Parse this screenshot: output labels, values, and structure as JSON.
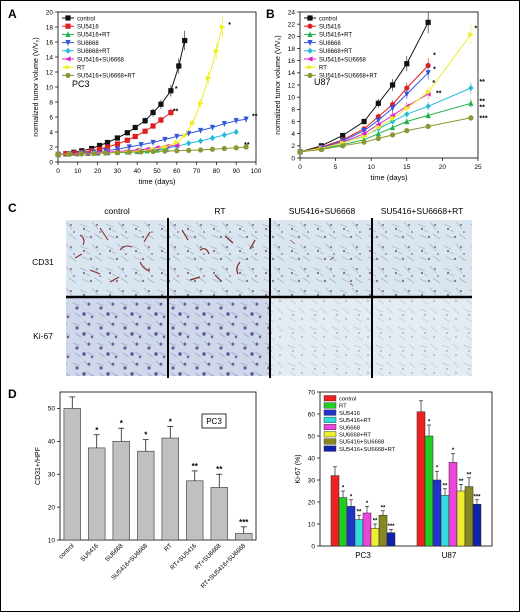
{
  "panel_labels": [
    "A",
    "B",
    "C",
    "D"
  ],
  "chart_data": [
    {
      "id": "A",
      "type": "line",
      "cell_label": "PC3",
      "xlabel": "time (days)",
      "ylabel": "normalized tumor volume (V/V₀)",
      "xlim": [
        0,
        100
      ],
      "ylim": [
        0,
        20
      ],
      "xticks": [
        0,
        10,
        20,
        30,
        40,
        50,
        60,
        70,
        80,
        90,
        100
      ],
      "yticks": [
        0,
        2,
        4,
        6,
        8,
        10,
        12,
        14,
        16,
        18,
        20
      ],
      "legend_position": "top-left",
      "series": [
        {
          "name": "control",
          "color": "#111111",
          "marker": "square",
          "points": [
            [
              0,
              1
            ],
            [
              4,
              1.1
            ],
            [
              8,
              1.3
            ],
            [
              12,
              1.5
            ],
            [
              17,
              1.8
            ],
            [
              21,
              2.2
            ],
            [
              25,
              2.6
            ],
            [
              30,
              3.2
            ],
            [
              35,
              3.9
            ],
            [
              39,
              4.6
            ],
            [
              44,
              5.5
            ],
            [
              48,
              6.6
            ],
            [
              52,
              7.7
            ],
            [
              57,
              9.5
            ],
            [
              61,
              12.8
            ],
            [
              64,
              16.2
            ]
          ]
        },
        {
          "name": "SU5416",
          "color": "#e02020",
          "marker": "square",
          "points": [
            [
              0,
              1
            ],
            [
              4,
              1.1
            ],
            [
              8,
              1.2
            ],
            [
              12,
              1.3
            ],
            [
              17,
              1.5
            ],
            [
              21,
              1.7
            ],
            [
              25,
              2
            ],
            [
              30,
              2.4
            ],
            [
              35,
              2.9
            ],
            [
              39,
              3.4
            ],
            [
              44,
              4.1
            ],
            [
              48,
              4.8
            ],
            [
              52,
              5.6
            ],
            [
              57,
              6.6
            ]
          ]
        },
        {
          "name": "SU5416+RT",
          "color": "#22b14c",
          "marker": "triangle",
          "points": [
            [
              0,
              1
            ],
            [
              5,
              1.05
            ],
            [
              10,
              1.1
            ],
            [
              15,
              1.15
            ],
            [
              20,
              1.2
            ],
            [
              25,
              1.25
            ],
            [
              30,
              1.3
            ],
            [
              35,
              1.35
            ],
            [
              40,
              1.4
            ],
            [
              45,
              1.5
            ],
            [
              50,
              1.6
            ],
            [
              55,
              1.7
            ]
          ]
        },
        {
          "name": "SU6668",
          "color": "#3355dd",
          "marker": "triangle-down",
          "points": [
            [
              0,
              1
            ],
            [
              6,
              1.1
            ],
            [
              12,
              1.2
            ],
            [
              18,
              1.3
            ],
            [
              24,
              1.5
            ],
            [
              30,
              1.7
            ],
            [
              36,
              2
            ],
            [
              42,
              2.3
            ],
            [
              48,
              2.6
            ],
            [
              54,
              3
            ],
            [
              60,
              3.4
            ],
            [
              66,
              3.8
            ],
            [
              72,
              4.2
            ],
            [
              78,
              4.6
            ],
            [
              84,
              5.1
            ],
            [
              90,
              5.5
            ],
            [
              95,
              5.7
            ]
          ]
        },
        {
          "name": "SU6668+RT",
          "color": "#22bbdd",
          "marker": "diamond",
          "points": [
            [
              0,
              1
            ],
            [
              6,
              1.05
            ],
            [
              12,
              1.1
            ],
            [
              18,
              1.15
            ],
            [
              24,
              1.2
            ],
            [
              30,
              1.3
            ],
            [
              36,
              1.4
            ],
            [
              42,
              1.5
            ],
            [
              48,
              1.6
            ],
            [
              54,
              1.8
            ],
            [
              60,
              2.1
            ],
            [
              66,
              2.5
            ],
            [
              72,
              2.8
            ],
            [
              78,
              3.2
            ],
            [
              84,
              3.6
            ],
            [
              90,
              4
            ]
          ]
        },
        {
          "name": "SU5416+SU6668",
          "color": "#dd22cc",
          "marker": "triangle-left",
          "points": [
            [
              0,
              1
            ],
            [
              5,
              1.05
            ],
            [
              10,
              1.1
            ],
            [
              15,
              1.15
            ],
            [
              20,
              1.2
            ],
            [
              25,
              1.3
            ],
            [
              30,
              1.4
            ],
            [
              35,
              1.5
            ],
            [
              40,
              1.6
            ],
            [
              45,
              1.7
            ],
            [
              50,
              1.9
            ],
            [
              55,
              2.1
            ],
            [
              60,
              2.2
            ]
          ]
        },
        {
          "name": "RT",
          "color": "#eeee22",
          "marker": "triangle-right",
          "points": [
            [
              0,
              1
            ],
            [
              6,
              1.05
            ],
            [
              12,
              1.1
            ],
            [
              18,
              1.15
            ],
            [
              24,
              1.2
            ],
            [
              30,
              1.3
            ],
            [
              36,
              1.4
            ],
            [
              42,
              1.5
            ],
            [
              48,
              1.7
            ],
            [
              54,
              2
            ],
            [
              60,
              2.6
            ],
            [
              64,
              3.5
            ],
            [
              68,
              5.2
            ],
            [
              72,
              7.8
            ],
            [
              76,
              11.2
            ],
            [
              80,
              14.8
            ],
            [
              83,
              18
            ]
          ]
        },
        {
          "name": "SU5416+SU6668+RT",
          "color": "#889933",
          "marker": "circle",
          "points": [
            [
              0,
              1
            ],
            [
              6,
              1.05
            ],
            [
              12,
              1.1
            ],
            [
              18,
              1.15
            ],
            [
              24,
              1.2
            ],
            [
              30,
              1.25
            ],
            [
              36,
              1.3
            ],
            [
              42,
              1.35
            ],
            [
              48,
              1.4
            ],
            [
              54,
              1.45
            ],
            [
              60,
              1.5
            ],
            [
              66,
              1.55
            ],
            [
              72,
              1.6
            ],
            [
              78,
              1.7
            ],
            [
              84,
              1.8
            ],
            [
              90,
              1.9
            ],
            [
              95,
              2
            ]
          ]
        }
      ],
      "annotations": [
        "*",
        "*",
        "**",
        "**",
        "**"
      ]
    },
    {
      "id": "B",
      "type": "line",
      "cell_label": "U87",
      "xlabel": "time (days)",
      "ylabel": "normalized tumor volume (V/V₀)",
      "xlim": [
        0,
        25
      ],
      "ylim": [
        0,
        24
      ],
      "xticks": [
        0,
        5,
        10,
        15,
        20,
        25
      ],
      "yticks": [
        0,
        2,
        4,
        6,
        8,
        10,
        12,
        14,
        16,
        18,
        20,
        22,
        24
      ],
      "legend_position": "top-left",
      "series": [
        {
          "name": "control",
          "color": "#111111",
          "marker": "square",
          "points": [
            [
              0,
              1
            ],
            [
              3,
              2
            ],
            [
              6,
              3.7
            ],
            [
              9,
              6
            ],
            [
              11,
              9
            ],
            [
              13,
              12
            ],
            [
              15,
              15.5
            ],
            [
              18,
              22.3
            ]
          ]
        },
        {
          "name": "SU5416",
          "color": "#e02020",
          "marker": "circle",
          "points": [
            [
              0,
              1
            ],
            [
              3,
              1.8
            ],
            [
              6,
              3
            ],
            [
              9,
              4.8
            ],
            [
              11,
              6.8
            ],
            [
              13,
              8.8
            ],
            [
              15,
              11.5
            ],
            [
              18,
              15.2
            ]
          ]
        },
        {
          "name": "SU5416+RT",
          "color": "#22b14c",
          "marker": "triangle",
          "points": [
            [
              0,
              1
            ],
            [
              3,
              1.5
            ],
            [
              6,
              2.2
            ],
            [
              9,
              3
            ],
            [
              11,
              4
            ],
            [
              13,
              5
            ],
            [
              15,
              6
            ],
            [
              18,
              7
            ],
            [
              24,
              9
            ]
          ]
        },
        {
          "name": "SU6668",
          "color": "#3355dd",
          "marker": "triangle-down",
          "points": [
            [
              0,
              1
            ],
            [
              3,
              1.7
            ],
            [
              6,
              2.8
            ],
            [
              9,
              4.5
            ],
            [
              11,
              6.2
            ],
            [
              13,
              8.2
            ],
            [
              15,
              10.5
            ],
            [
              18,
              14
            ]
          ]
        },
        {
          "name": "SU6668+RT",
          "color": "#22bbdd",
          "marker": "diamond",
          "points": [
            [
              0,
              1
            ],
            [
              3,
              1.6
            ],
            [
              6,
              2.5
            ],
            [
              9,
              3.6
            ],
            [
              11,
              4.8
            ],
            [
              13,
              6
            ],
            [
              15,
              7.2
            ],
            [
              18,
              8.5
            ],
            [
              24,
              11.5
            ]
          ]
        },
        {
          "name": "SU5416+SU6668",
          "color": "#dd22cc",
          "marker": "triangle-left",
          "points": [
            [
              0,
              1
            ],
            [
              3,
              1.6
            ],
            [
              6,
              2.6
            ],
            [
              9,
              4
            ],
            [
              11,
              5.5
            ],
            [
              13,
              7
            ],
            [
              15,
              8.5
            ],
            [
              18,
              10.5
            ]
          ]
        },
        {
          "name": "RT",
          "color": "#eeee22",
          "marker": "triangle-right",
          "points": [
            [
              0,
              1
            ],
            [
              3,
              1.6
            ],
            [
              6,
              2.5
            ],
            [
              9,
              3.5
            ],
            [
              11,
              5
            ],
            [
              13,
              6.5
            ],
            [
              15,
              8.2
            ],
            [
              18,
              10.8
            ],
            [
              24,
              20.3
            ]
          ]
        },
        {
          "name": "SU5416+SU6668+RT",
          "color": "#889933",
          "marker": "circle",
          "points": [
            [
              0,
              1
            ],
            [
              3,
              1.4
            ],
            [
              6,
              2
            ],
            [
              9,
              2.6
            ],
            [
              11,
              3.2
            ],
            [
              13,
              3.8
            ],
            [
              15,
              4.5
            ],
            [
              18,
              5.2
            ],
            [
              24,
              6.6
            ]
          ]
        }
      ],
      "annotations": [
        "*",
        "*",
        "*",
        "**",
        "*",
        "**",
        "**",
        "**",
        "***"
      ]
    },
    {
      "id": "D1",
      "type": "bar",
      "cell_label": "PC3",
      "ylabel": "CD31+/HPF",
      "ylim": [
        10,
        55
      ],
      "yticks": [
        10,
        20,
        30,
        40,
        50
      ],
      "categories": [
        "control",
        "SU5416",
        "SU6668",
        "SU5416+SU6668",
        "RT",
        "RT+SU5416",
        "RT+SU6668",
        "RT+SU5416+SU6668"
      ],
      "values": [
        50,
        38,
        40,
        37,
        41,
        28,
        26,
        12
      ],
      "errors": [
        3.5,
        4,
        4,
        3.5,
        3.5,
        3,
        4,
        2
      ],
      "significance": [
        "",
        "*",
        "*",
        "*",
        "*",
        "**",
        "**",
        "***"
      ],
      "bar_color": "#c0c0c0"
    },
    {
      "id": "D2",
      "type": "bar",
      "ylabel": "Ki-67 (%)",
      "ylim": [
        0,
        70
      ],
      "yticks": [
        0,
        10,
        20,
        30,
        40,
        50,
        60,
        70
      ],
      "categories": [
        "PC3",
        "U87"
      ],
      "legend_position": "top-left",
      "series": [
        {
          "name": "control",
          "color": "#ee2222",
          "values": [
            32,
            61
          ],
          "errors": [
            4,
            5
          ]
        },
        {
          "name": "RT",
          "color": "#22cc22",
          "values": [
            22,
            50
          ],
          "errors": [
            3,
            5
          ]
        },
        {
          "name": "SU5416",
          "color": "#2233cc",
          "values": [
            18,
            30
          ],
          "errors": [
            3,
            4
          ]
        },
        {
          "name": "SU5416+RT",
          "color": "#33dddd",
          "values": [
            12,
            23
          ],
          "errors": [
            2,
            3
          ]
        },
        {
          "name": "SU6668",
          "color": "#ee44dd",
          "values": [
            15,
            38
          ],
          "errors": [
            3,
            4
          ]
        },
        {
          "name": "SU6668+RT",
          "color": "#eeee33",
          "values": [
            8,
            25
          ],
          "errors": [
            2,
            3
          ]
        },
        {
          "name": "SU5416+SU6668",
          "color": "#888822",
          "values": [
            14,
            27
          ],
          "errors": [
            2,
            4
          ]
        },
        {
          "name": "SU5416+SU6668+RT",
          "color": "#1122aa",
          "values": [
            6,
            19
          ],
          "errors": [
            1.5,
            2
          ]
        }
      ],
      "significance": [
        [
          "",
          "*",
          "*",
          "**",
          "*",
          "**",
          "**",
          "***"
        ],
        [
          "",
          "*",
          "*",
          "**",
          "*",
          "**",
          "**",
          "***"
        ]
      ]
    }
  ],
  "histology": {
    "columns": [
      "control",
      "RT",
      "SU5416+SU6668",
      "SU5416+SU6668+RT"
    ],
    "rows": [
      "CD31",
      "Ki-67"
    ]
  }
}
